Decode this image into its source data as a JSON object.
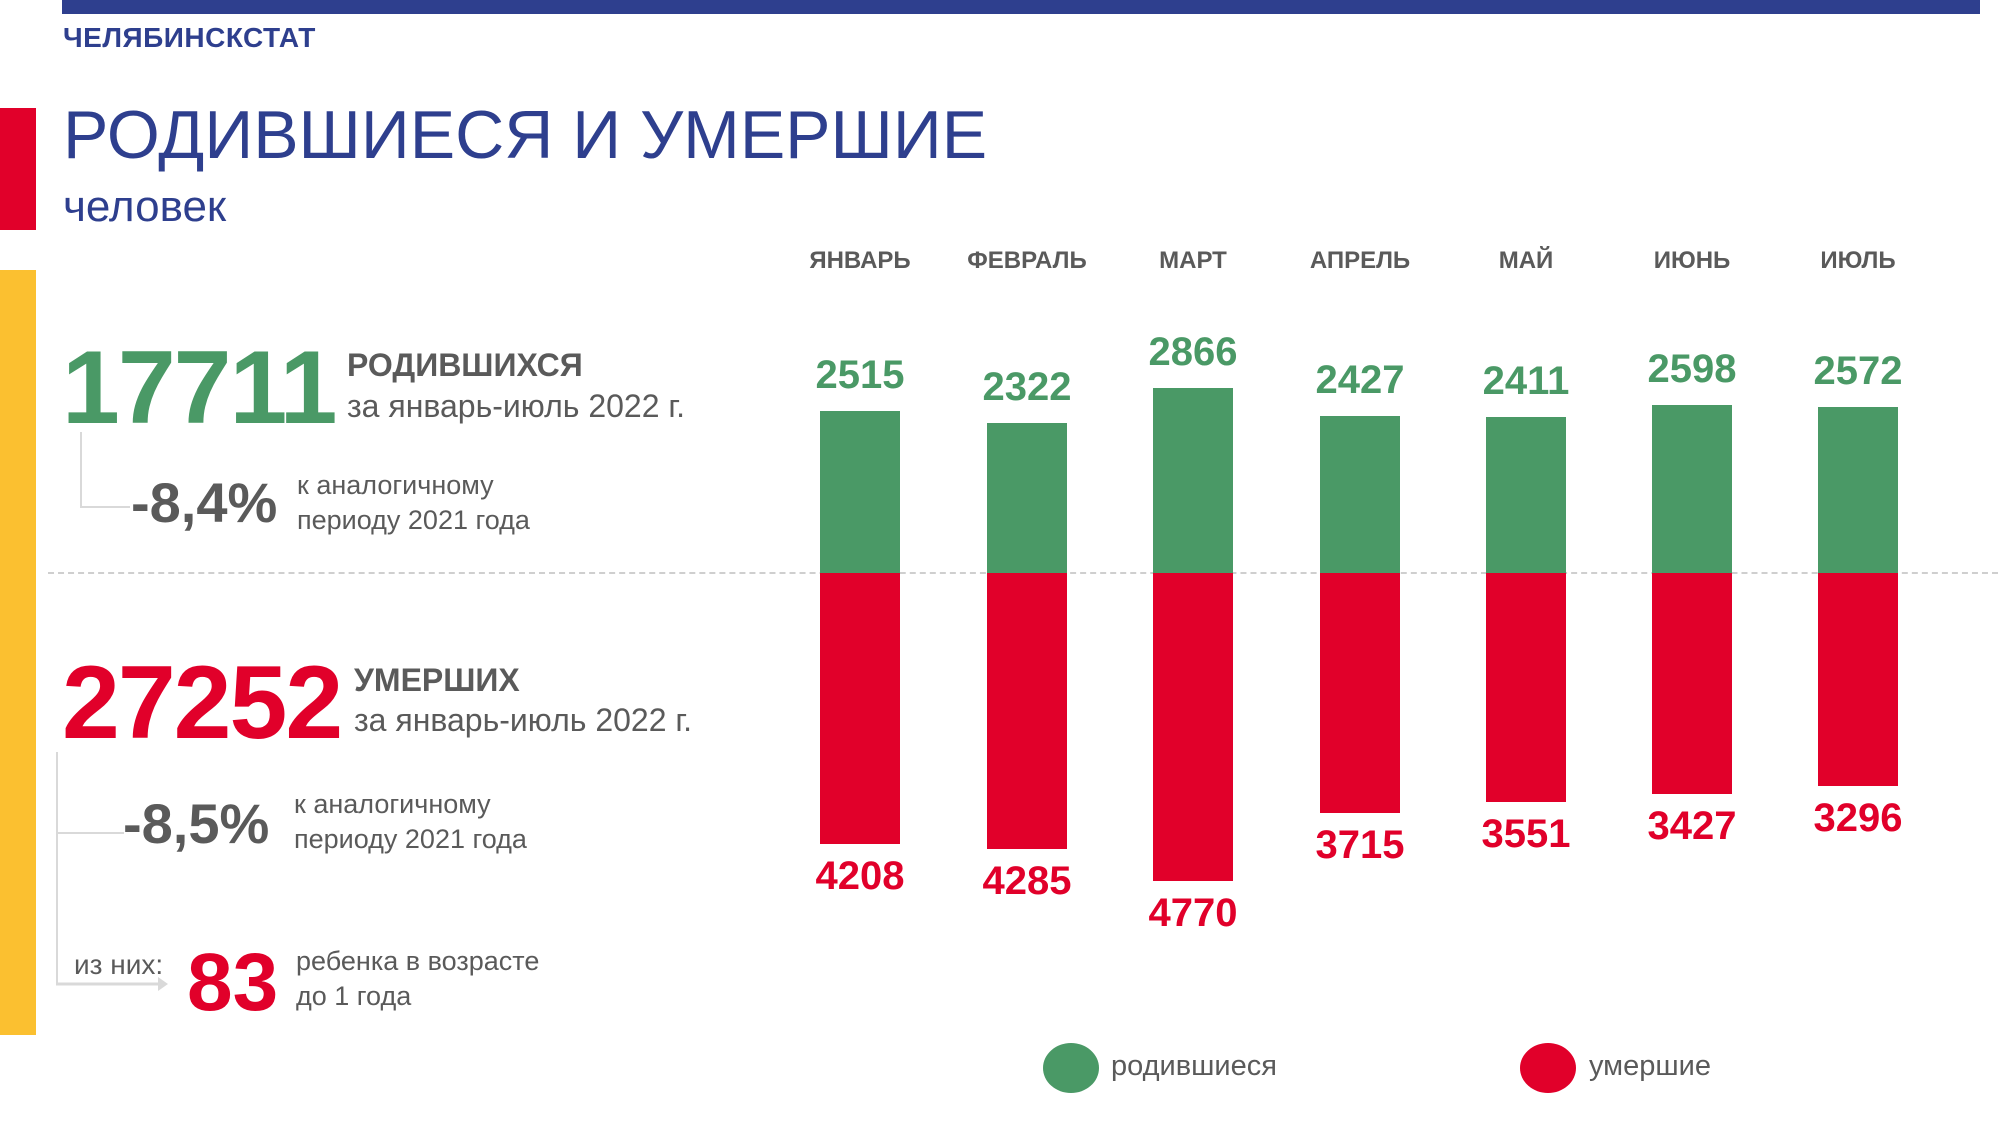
{
  "header": {
    "org": "ЧЕЛЯБИНСКСТАТ",
    "title": "РОДИВШИЕСЯ И УМЕРШИЕ",
    "subtitle": "человек"
  },
  "colors": {
    "births": "#4a9966",
    "deaths": "#e1002a",
    "brand_blue": "#2e3f8e",
    "accent_yellow": "#fbc030",
    "text_gray": "#5a5a5a"
  },
  "summary": {
    "births": {
      "total": "17711",
      "label": "РОДИВШИХСЯ",
      "period": "за январь-июль 2022 г.",
      "change": "-8,4%",
      "change_note_1": "к аналогичному",
      "change_note_2": "периоду 2021 года"
    },
    "deaths": {
      "total": "27252",
      "label": "УМЕРШИХ",
      "period": "за январь-июль 2022 г.",
      "change": "-8,5%",
      "change_note_1": "к аналогичному",
      "change_note_2": "периоду 2021 года"
    },
    "infants": {
      "prefix": "из них:",
      "value": "83",
      "note_1": "ребенка в возрасте",
      "note_2": "до 1 года"
    }
  },
  "chart_data": {
    "type": "bar",
    "categories": [
      "ЯНВАРЬ",
      "ФЕВРАЛЬ",
      "МАРТ",
      "АПРЕЛЬ",
      "МАЙ",
      "ИЮНЬ",
      "ИЮЛЬ"
    ],
    "series": [
      {
        "name": "родившиеся",
        "values": [
          2515,
          2322,
          2866,
          2427,
          2411,
          2598,
          2572
        ]
      },
      {
        "name": "умершие",
        "values": [
          4208,
          4285,
          4770,
          3715,
          3551,
          3427,
          3296
        ]
      }
    ],
    "legend": [
      "родившиеся",
      "умершие"
    ],
    "legend_position": "bottom",
    "layout": "diverging: births above baseline, deaths below"
  }
}
